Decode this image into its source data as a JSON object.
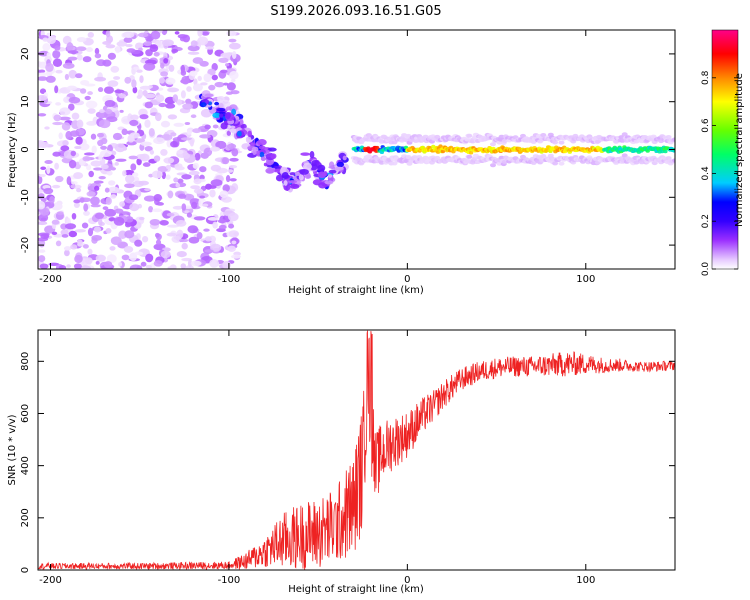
{
  "title": "S199.2026.093.16.51.G05",
  "colors": {
    "snr_line": "#ee2222",
    "low_amplitude": "#d9b8f2",
    "mid_amplitude": "#6a0fd6",
    "axis": "#000000"
  },
  "chart_data": [
    {
      "id": "spectrogram",
      "type": "heatmap",
      "title": "",
      "xlabel": "Height of straight line (km)",
      "ylabel": "Frequency (Hz)",
      "xlim": [
        -207,
        150
      ],
      "ylim": [
        -25,
        25
      ],
      "xticks": [
        -200,
        -100,
        0,
        100
      ],
      "yticks": [
        -20,
        -10,
        0,
        10,
        20
      ],
      "colorbar": {
        "label": "Normalized spectral amplitude",
        "range": [
          0,
          1
        ],
        "ticks": [
          "0.0",
          "0.2",
          "0.4",
          "0.6",
          "0.8"
        ],
        "colormap": [
          "#ffffff",
          "#e6c8ff",
          "#9b30ff",
          "#3300ff",
          "#0000ff",
          "#00ccff",
          "#00ff66",
          "#66ff00",
          "#ffff00",
          "#ff8800",
          "#ff0000",
          "#ff0088"
        ]
      },
      "features": {
        "noise_region": {
          "x_range": [
            -207,
            -95
          ],
          "freq_range": [
            -25,
            25
          ],
          "amplitude": "0.1-0.35"
        },
        "descending_trace": {
          "x": [
            -115,
            -105,
            -95,
            -85,
            -75,
            -65,
            -55,
            -45,
            -40,
            -35
          ],
          "freq": [
            10,
            8,
            5,
            1,
            -3,
            -7,
            -3,
            -6,
            -4,
            -2
          ],
          "amplitude": "0.2-0.5"
        },
        "steady_line": {
          "x_range": [
            -30,
            150
          ],
          "freq": 0,
          "amplitude_peak": 0.95,
          "peak_x": -20
        }
      }
    },
    {
      "id": "snr",
      "type": "line",
      "title": "",
      "xlabel": "Height of straight line (km)",
      "ylabel": "SNR (10 * v/v)",
      "xlim": [
        -207,
        150
      ],
      "ylim": [
        0,
        920
      ],
      "xticks": [
        -200,
        -100,
        0,
        100
      ],
      "yticks": [
        0,
        200,
        400,
        600,
        800
      ],
      "series": [
        {
          "name": "SNR",
          "x": [
            -207,
            -150,
            -100,
            -90,
            -80,
            -70,
            -60,
            -50,
            -40,
            -30,
            -25,
            -22,
            -20,
            -18,
            -15,
            -10,
            -5,
            0,
            5,
            10,
            15,
            20,
            30,
            40,
            50,
            60,
            70,
            80,
            90,
            100,
            110,
            120,
            130,
            140,
            150
          ],
          "mean": [
            15,
            15,
            18,
            35,
            70,
            110,
            130,
            140,
            170,
            250,
            400,
            750,
            550,
            380,
            440,
            480,
            500,
            520,
            560,
            600,
            630,
            670,
            730,
            760,
            775,
            780,
            780,
            785,
            790,
            790,
            785,
            785,
            780,
            780,
            785
          ],
          "spread": [
            12,
            12,
            15,
            35,
            60,
            110,
            130,
            140,
            150,
            200,
            250,
            170,
            200,
            150,
            120,
            110,
            100,
            90,
            80,
            70,
            60,
            55,
            45,
            40,
            40,
            40,
            40,
            45,
            50,
            40,
            30,
            25,
            20,
            20,
            20
          ]
        }
      ]
    }
  ]
}
